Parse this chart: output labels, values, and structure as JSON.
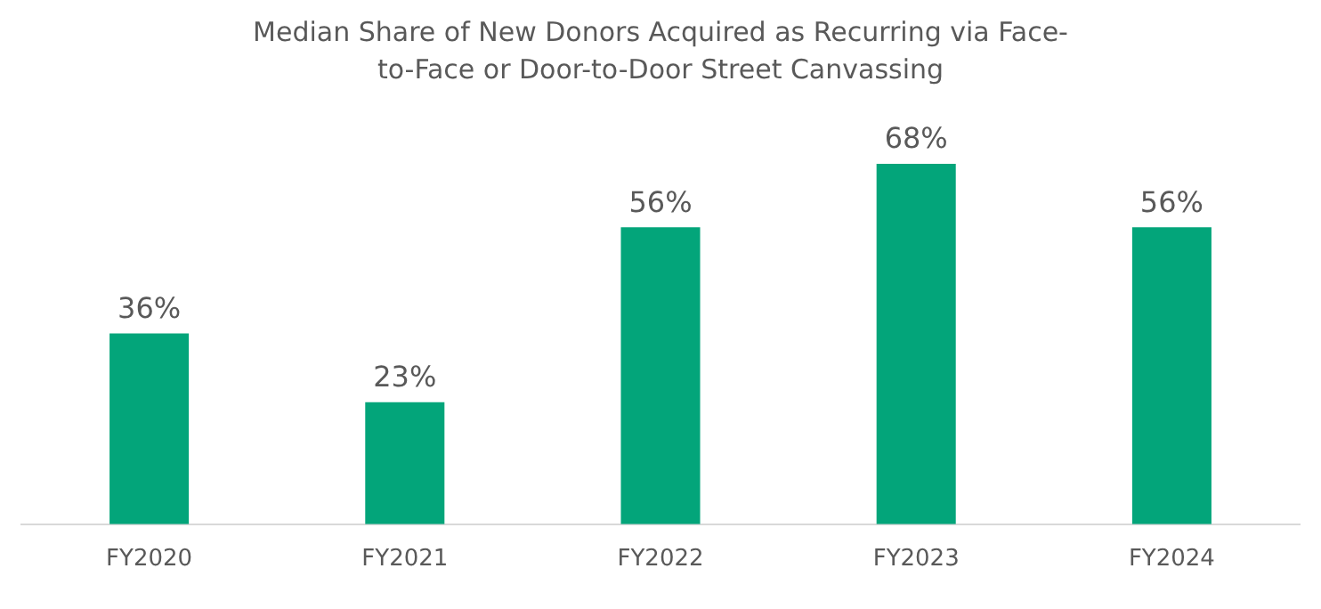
{
  "chart_data": {
    "type": "bar",
    "title": "Median Share of New Donors Acquired as Recurring via Face-to-Face or Door-to-Door Street Canvassing",
    "categories": [
      "FY2020",
      "FY2021",
      "FY2022",
      "FY2023",
      "FY2024"
    ],
    "values": [
      36,
      23,
      56,
      68,
      56
    ],
    "value_labels": [
      "36%",
      "23%",
      "56%",
      "68%",
      "56%"
    ],
    "color": "#03a57a",
    "grid": false,
    "legend": false
  }
}
